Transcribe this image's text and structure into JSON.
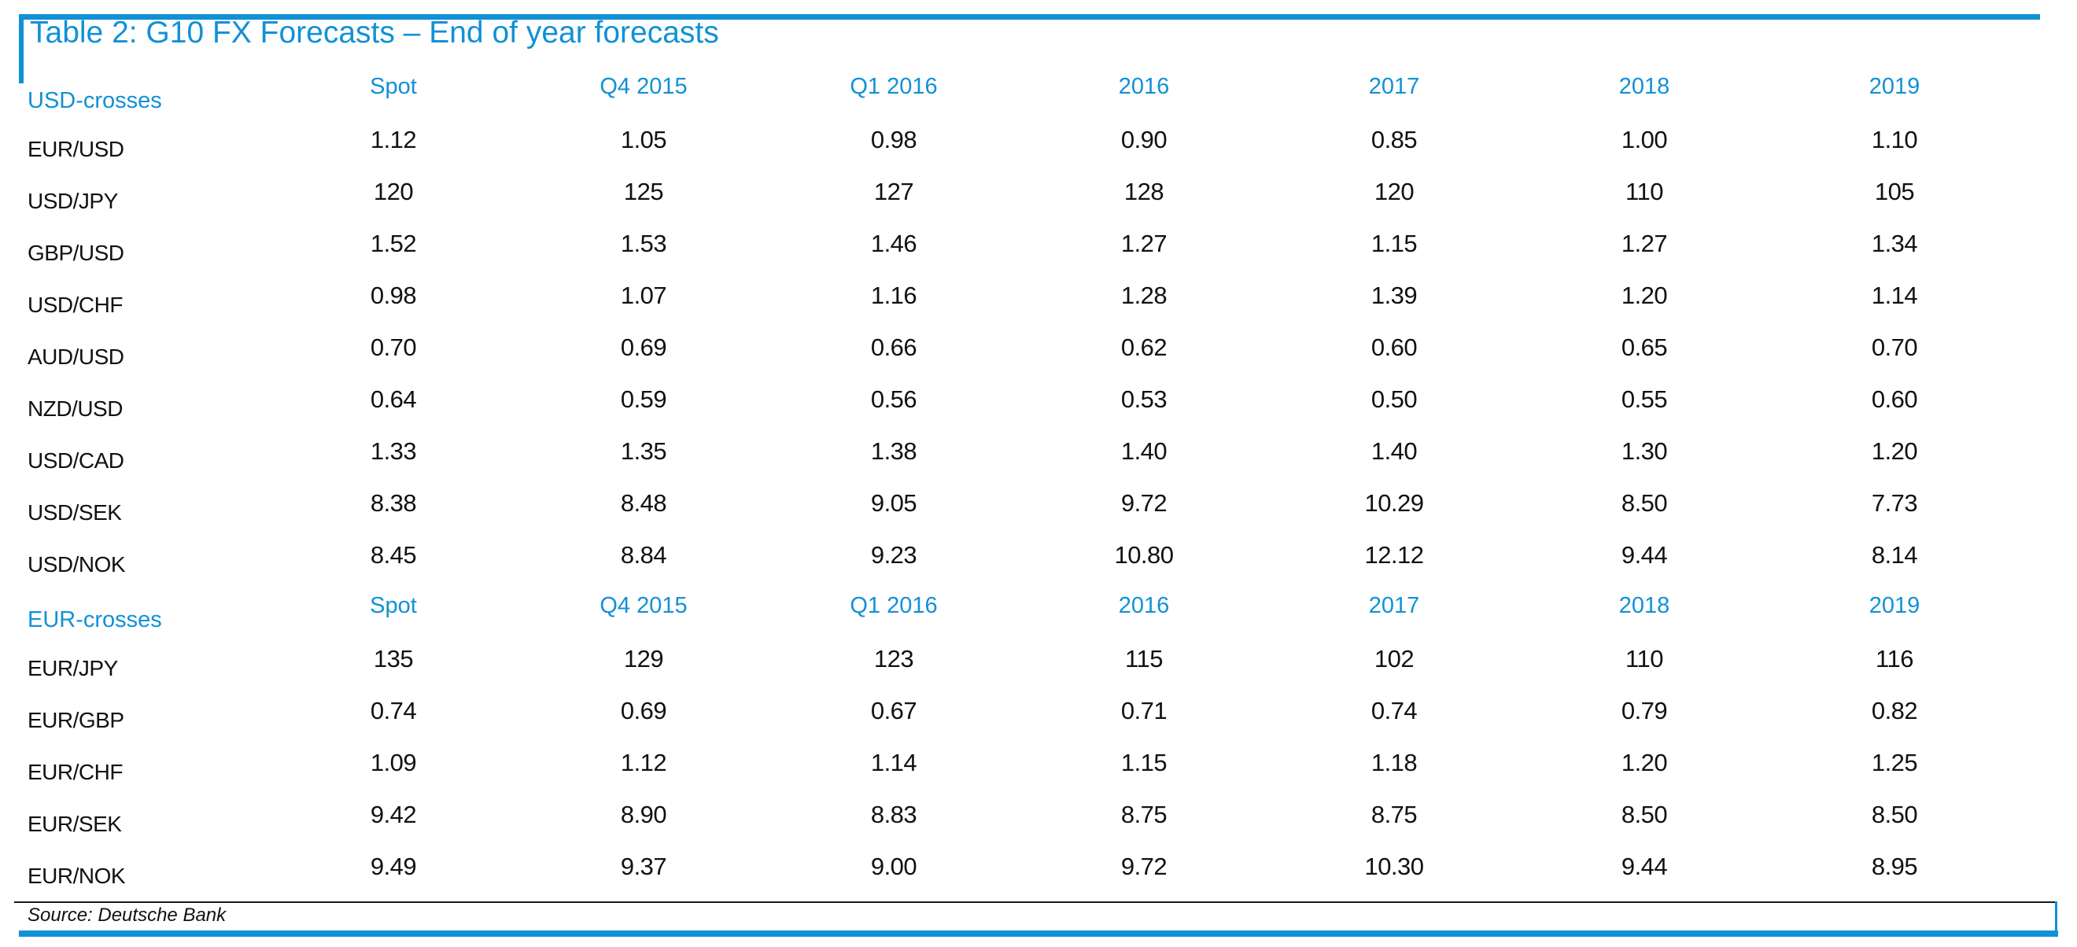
{
  "title": "Table 2: G10 FX Forecasts – End of year forecasts",
  "columns": [
    "Spot",
    "Q4 2015",
    "Q1 2016",
    "2016",
    "2017",
    "2018",
    "2019"
  ],
  "sections": [
    {
      "label": "USD-crosses",
      "rows": [
        {
          "pair": "EUR/USD",
          "values": [
            "1.12",
            "1.05",
            "0.98",
            "0.90",
            "0.85",
            "1.00",
            "1.10"
          ]
        },
        {
          "pair": "USD/JPY",
          "values": [
            "120",
            "125",
            "127",
            "128",
            "120",
            "110",
            "105"
          ]
        },
        {
          "pair": "GBP/USD",
          "values": [
            "1.52",
            "1.53",
            "1.46",
            "1.27",
            "1.15",
            "1.27",
            "1.34"
          ]
        },
        {
          "pair": "USD/CHF",
          "values": [
            "0.98",
            "1.07",
            "1.16",
            "1.28",
            "1.39",
            "1.20",
            "1.14"
          ]
        },
        {
          "pair": "AUD/USD",
          "values": [
            "0.70",
            "0.69",
            "0.66",
            "0.62",
            "0.60",
            "0.65",
            "0.70"
          ]
        },
        {
          "pair": "NZD/USD",
          "values": [
            "0.64",
            "0.59",
            "0.56",
            "0.53",
            "0.50",
            "0.55",
            "0.60"
          ]
        },
        {
          "pair": "USD/CAD",
          "values": [
            "1.33",
            "1.35",
            "1.38",
            "1.40",
            "1.40",
            "1.30",
            "1.20"
          ]
        },
        {
          "pair": "USD/SEK",
          "values": [
            "8.38",
            "8.48",
            "9.05",
            "9.72",
            "10.29",
            "8.50",
            "7.73"
          ]
        },
        {
          "pair": "USD/NOK",
          "values": [
            "8.45",
            "8.84",
            "9.23",
            "10.80",
            "12.12",
            "9.44",
            "8.14"
          ]
        }
      ]
    },
    {
      "label": "EUR-crosses",
      "rows": [
        {
          "pair": "EUR/JPY",
          "values": [
            "135",
            "129",
            "123",
            "115",
            "102",
            "110",
            "116"
          ]
        },
        {
          "pair": "EUR/GBP",
          "values": [
            "0.74",
            "0.69",
            "0.67",
            "0.71",
            "0.74",
            "0.79",
            "0.82"
          ]
        },
        {
          "pair": "EUR/CHF",
          "values": [
            "1.09",
            "1.12",
            "1.14",
            "1.15",
            "1.18",
            "1.20",
            "1.25"
          ]
        },
        {
          "pair": "EUR/SEK",
          "values": [
            "9.42",
            "8.90",
            "8.83",
            "8.75",
            "8.75",
            "8.50",
            "8.50"
          ]
        },
        {
          "pair": "EUR/NOK",
          "values": [
            "9.49",
            "9.37",
            "9.00",
            "9.72",
            "10.30",
            "9.44",
            "8.95"
          ]
        }
      ]
    }
  ],
  "source": "Source: Deutsche Bank",
  "colors": {
    "accent_blue": "#1191d6",
    "text_black": "#111111"
  }
}
